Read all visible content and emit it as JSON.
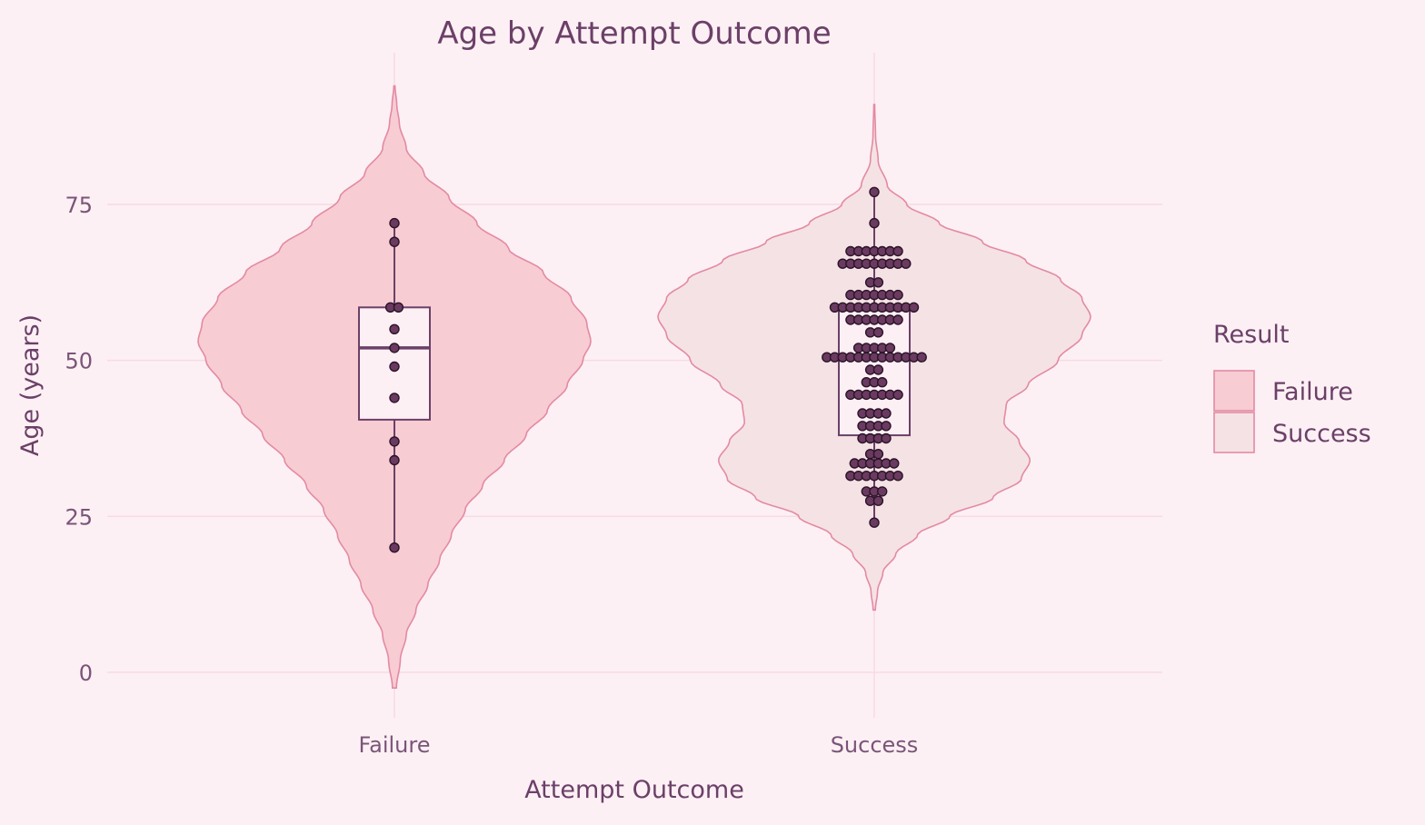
{
  "chart_data": {
    "type": "violin",
    "title": "Age by Attempt Outcome",
    "xlabel": "Attempt Outcome",
    "ylabel": "Age (years)",
    "ylim": [
      -5,
      95
    ],
    "yticks": [
      0,
      25,
      50,
      75
    ],
    "categories": [
      "Failure",
      "Success"
    ],
    "legend": {
      "title": "Result",
      "placement": "right",
      "entries": [
        "Failure",
        "Success"
      ]
    },
    "grid": true,
    "colors": {
      "background": "#fdf0f4",
      "failure_fill": "#f7ccd2",
      "success_fill": "#f5e2e4",
      "violin_stroke": "#e38aa3",
      "box_stroke": "#6b4068",
      "box_fill": "#fdf0f4",
      "point_fill": "#6b3a60",
      "point_stroke": "#2a1428",
      "grid": "#f7dbe3"
    },
    "series": [
      {
        "name": "Failure",
        "ymin": -2.5,
        "ymax": 94,
        "density": [
          [
            -2.5,
            0.01
          ],
          [
            2,
            0.03
          ],
          [
            6,
            0.06
          ],
          [
            10,
            0.11
          ],
          [
            14,
            0.17
          ],
          [
            18,
            0.23
          ],
          [
            22,
            0.29
          ],
          [
            26,
            0.36
          ],
          [
            30,
            0.45
          ],
          [
            34,
            0.56
          ],
          [
            38,
            0.67
          ],
          [
            42,
            0.78
          ],
          [
            46,
            0.88
          ],
          [
            50,
            0.96
          ],
          [
            53,
            1.0
          ],
          [
            56,
            0.98
          ],
          [
            60,
            0.9
          ],
          [
            64,
            0.76
          ],
          [
            68,
            0.58
          ],
          [
            72,
            0.42
          ],
          [
            76,
            0.28
          ],
          [
            80,
            0.15
          ],
          [
            84,
            0.06
          ],
          [
            88,
            0.025
          ],
          [
            91,
            0.012
          ],
          [
            94,
            0.003
          ]
        ],
        "box": {
          "min": 20,
          "q1": 40.5,
          "median": 52,
          "q3": 58.5,
          "max": 72
        },
        "points": [
          20,
          34,
          37,
          44,
          49,
          52,
          55,
          58.5,
          58.5,
          69,
          72
        ]
      },
      {
        "name": "Success",
        "ymin": 10,
        "ymax": 91,
        "density": [
          [
            10,
            0.005
          ],
          [
            13,
            0.015
          ],
          [
            16,
            0.04
          ],
          [
            19,
            0.1
          ],
          [
            22,
            0.2
          ],
          [
            25,
            0.35
          ],
          [
            28,
            0.55
          ],
          [
            31,
            0.68
          ],
          [
            34,
            0.72
          ],
          [
            37,
            0.67
          ],
          [
            40,
            0.6
          ],
          [
            43,
            0.61
          ],
          [
            46,
            0.71
          ],
          [
            50,
            0.85
          ],
          [
            54,
            0.96
          ],
          [
            57,
            1.0
          ],
          [
            60,
            0.96
          ],
          [
            63,
            0.86
          ],
          [
            66,
            0.7
          ],
          [
            69,
            0.5
          ],
          [
            72,
            0.3
          ],
          [
            75,
            0.15
          ],
          [
            78,
            0.06
          ],
          [
            82,
            0.018
          ],
          [
            86,
            0.006
          ],
          [
            91,
            0.002
          ]
        ],
        "box": {
          "min": 24,
          "q1": 38,
          "median": 50.5,
          "q3": 58,
          "max": 77
        },
        "points": [
          24,
          27.5,
          27.5,
          29,
          29,
          29,
          31.5,
          31.5,
          31.5,
          31.5,
          31.5,
          31.5,
          31.5,
          33.5,
          33.5,
          33.5,
          33.5,
          33.5,
          33.5,
          35,
          35,
          37.5,
          37.5,
          37.5,
          37.5,
          39.5,
          39.5,
          39.5,
          39.5,
          41.5,
          41.5,
          41.5,
          41.5,
          44.5,
          44.5,
          44.5,
          44.5,
          44.5,
          44.5,
          44.5,
          46.5,
          46.5,
          46.5,
          48.5,
          48.5,
          50.5,
          50.5,
          50.5,
          50.5,
          50.5,
          50.5,
          50.5,
          50.5,
          50.5,
          50.5,
          50.5,
          50.5,
          50.5,
          52,
          52,
          52,
          52,
          52,
          54.5,
          54.5,
          56.5,
          56.5,
          56.5,
          56.5,
          56.5,
          56.5,
          56.5,
          58.5,
          58.5,
          58.5,
          58.5,
          58.5,
          58.5,
          58.5,
          58.5,
          58.5,
          58.5,
          58.5,
          60.5,
          60.5,
          60.5,
          60.5,
          60.5,
          60.5,
          60.5,
          62.5,
          62.5,
          65.5,
          65.5,
          65.5,
          65.5,
          65.5,
          65.5,
          65.5,
          65.5,
          65.5,
          67.5,
          67.5,
          67.5,
          67.5,
          67.5,
          67.5,
          67.5,
          72,
          77
        ]
      }
    ]
  }
}
